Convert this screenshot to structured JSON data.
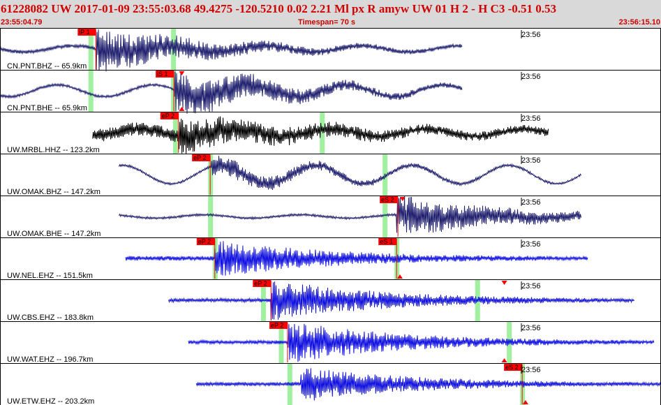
{
  "header": {
    "title": "61228082 UW 2017-01-09 23:55:03.68   49.4275 -120.5210   0.02  2.21 Ml  px  R amyw     UW 01  H   2  -  H C3   -0.51  0.53",
    "start_time": "23:55:04.79",
    "timespan": "Timespan=  70 s",
    "end_time": "23:56:15.10"
  },
  "colors": {
    "short_period": "#1010e0",
    "broadband": "#20206e",
    "highgain": "#000000",
    "pick_box": "#ff0000",
    "pick_window": "#a0f0a0"
  },
  "traces": [
    {
      "label": "CN.PNT.BHZ -- 65.9km",
      "tick": "23:56",
      "color": "#20206e",
      "start": 0.0,
      "end": 0.7,
      "noise": 0.08,
      "onset": 0.145,
      "onsetAmp": 1.0,
      "longPeriod": 0.18,
      "picks": [
        {
          "label": "iP 1",
          "t": 0.145
        }
      ],
      "windows": [
        0.137,
        0.262
      ],
      "markers": []
    },
    {
      "label": "CN.PNT.BHE -- 65.9km",
      "tick": "23:56",
      "color": "#20206e",
      "start": 0.0,
      "end": 0.7,
      "noise": 0.06,
      "onset": 0.263,
      "onsetAmp": 1.0,
      "longPeriod": 0.35,
      "picks": [
        {
          "label": "iS 1",
          "t": 0.263
        }
      ],
      "windows": [
        0.137,
        0.262
      ],
      "markers": [
        {
          "t": 0.275,
          "dir": "down"
        },
        {
          "t": 0.275,
          "dir": "up"
        }
      ]
    },
    {
      "label": "UW.MRBL.HHZ -- 123.2km",
      "tick": "23:56",
      "color": "#000000",
      "start": 0.14,
      "end": 0.83,
      "noise": 0.28,
      "onset": 0.27,
      "onsetAmp": 0.7,
      "longPeriod": 0.22,
      "picks": [
        {
          "label": "eP 2",
          "t": 0.27
        }
      ],
      "windows": [
        0.265,
        0.487
      ],
      "markers": []
    },
    {
      "label": "UW.OMAK.BHZ -- 147.2km",
      "tick": "23:56",
      "color": "#20206e",
      "start": 0.18,
      "end": 0.88,
      "noise": 0.05,
      "onset": 0.32,
      "onsetAmp": 0.5,
      "longPeriod": 0.55,
      "picks": [
        {
          "label": "eP 2",
          "t": 0.318
        }
      ],
      "windows": [
        0.318,
        0.582
      ],
      "markers": []
    },
    {
      "label": "UW.OMAK.BHE -- 147.2km",
      "tick": "23:56",
      "color": "#20206e",
      "start": 0.18,
      "end": 0.88,
      "noise": 0.05,
      "onset": 0.6,
      "onsetAmp": 0.95,
      "longPeriod": 0.1,
      "picks": [
        {
          "label": "eS 2",
          "t": 0.602
        }
      ],
      "windows": [
        0.318,
        0.582
      ],
      "markers": [
        {
          "t": 0.609,
          "dir": "down"
        }
      ]
    },
    {
      "label": "UW.NEL.EHZ -- 151.5km",
      "tick": "23:56",
      "color": "#1010e0",
      "start": 0.19,
      "end": 0.89,
      "noise": 0.1,
      "onset": 0.325,
      "onsetAmp": 0.85,
      "longPeriod": 0.0,
      "picks": [
        {
          "label": "eP 2",
          "t": 0.325
        },
        {
          "label": "eS 1",
          "t": 0.6
        }
      ],
      "windows": [
        0.325,
        0.6
      ],
      "markers": [
        {
          "t": 0.605,
          "dir": "up"
        }
      ]
    },
    {
      "label": "UW.CBS.EHZ -- 183.8km",
      "tick": "23:56",
      "color": "#1010e0",
      "start": 0.255,
      "end": 0.96,
      "noise": 0.08,
      "onset": 0.41,
      "onsetAmp": 0.95,
      "longPeriod": 0.0,
      "picks": [
        {
          "label": "eP 2",
          "t": 0.41
        }
      ],
      "windows": [
        0.398,
        0.722
      ],
      "markers": [
        {
          "t": 0.763,
          "dir": "down"
        }
      ]
    },
    {
      "label": "UW.WAT.EHZ -- 196.7km",
      "tick": "23:56",
      "color": "#1010e0",
      "start": 0.285,
      "end": 0.99,
      "noise": 0.08,
      "onset": 0.435,
      "onsetAmp": 0.95,
      "longPeriod": 0.0,
      "picks": [
        {
          "label": "eP 2",
          "t": 0.435
        }
      ],
      "windows": [
        0.425,
        0.77
      ],
      "markers": [
        {
          "t": 0.763,
          "dir": "up"
        }
      ]
    },
    {
      "label": "UW.ETW.EHZ -- 203.2km",
      "tick": "23:56",
      "color": "#1010e0",
      "start": 0.297,
      "end": 1.0,
      "noise": 0.08,
      "onset": 0.455,
      "onsetAmp": 0.8,
      "longPeriod": 0.0,
      "picks": [
        {
          "label": "eS 2",
          "t": 0.79
        }
      ],
      "windows": [
        0.438,
        0.79
      ],
      "markers": [
        {
          "t": 0.795,
          "dir": "up"
        }
      ]
    }
  ]
}
